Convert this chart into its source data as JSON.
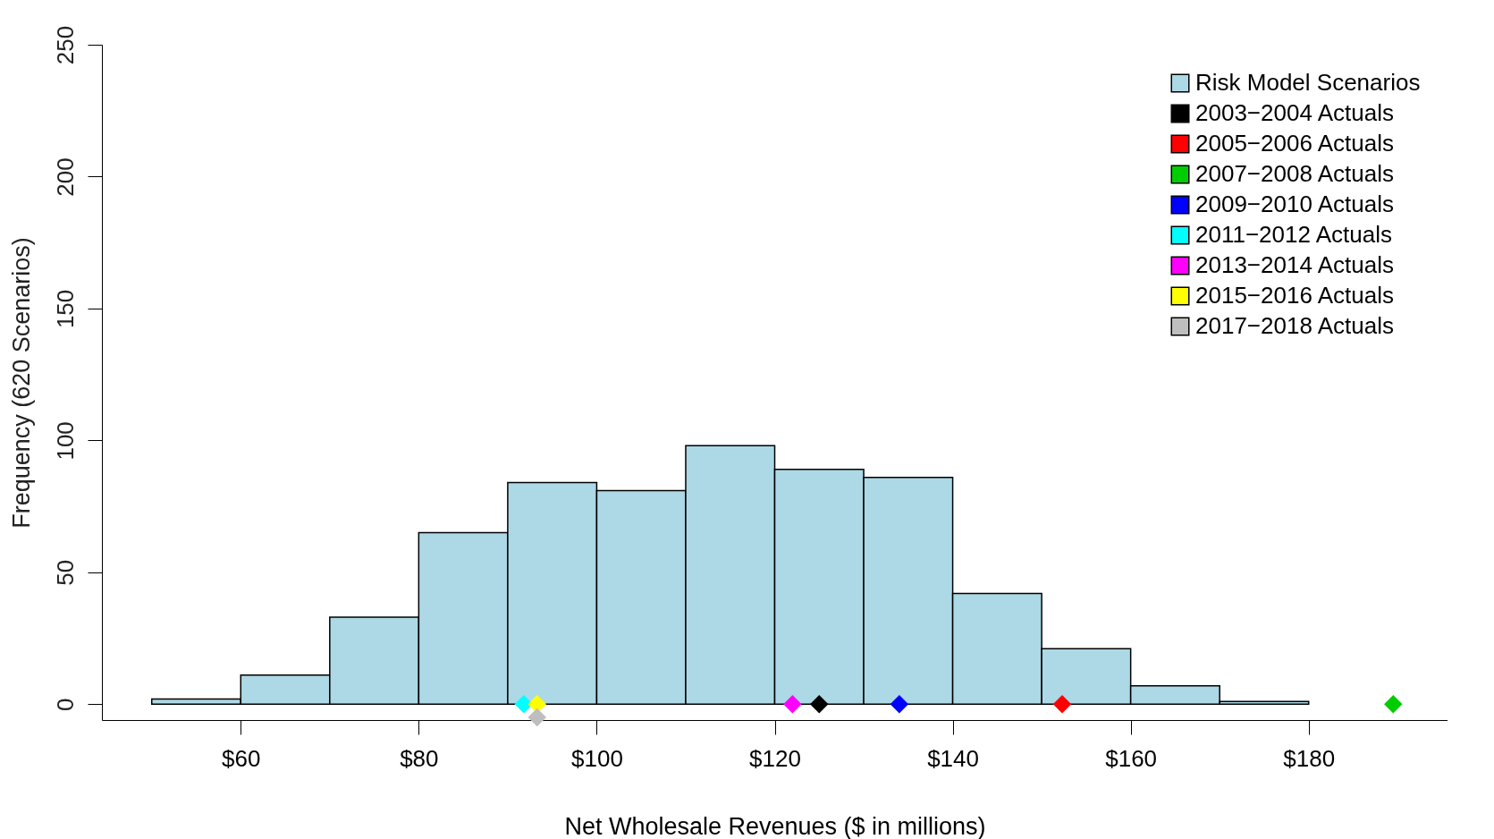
{
  "chart_data": {
    "type": "histogram",
    "xlabel": "Net Wholesale Revenues ($ in millions)",
    "ylabel": "Frequency (620 Scenarios)",
    "bins": [
      50,
      60,
      70,
      80,
      90,
      100,
      110,
      120,
      130,
      140,
      150,
      160,
      170,
      180
    ],
    "series": [
      {
        "name": "Risk Model Scenarios",
        "color": "#add8e6",
        "values": [
          2,
          11,
          33,
          65,
          84,
          81,
          98,
          89,
          86,
          42,
          21,
          7,
          1
        ]
      },
      {
        "type": "scatter",
        "name": "2003−2004 Actuals",
        "color": "#000000",
        "x": [
          125
        ],
        "values": [
          0
        ]
      },
      {
        "type": "scatter",
        "name": "2005−2006 Actuals",
        "color": "#ff0000",
        "x": [
          152.3
        ],
        "values": [
          0
        ]
      },
      {
        "type": "scatter",
        "name": "2007−2008 Actuals",
        "color": "#00cd00",
        "x": [
          189.5
        ],
        "values": [
          0
        ]
      },
      {
        "type": "scatter",
        "name": "2009−2010 Actuals",
        "color": "#0000ff",
        "x": [
          134
        ],
        "values": [
          0
        ]
      },
      {
        "type": "scatter",
        "name": "2011−2012 Actuals",
        "color": "#00ffff",
        "x": [
          91.8
        ],
        "values": [
          0
        ]
      },
      {
        "type": "scatter",
        "name": "2013−2014 Actuals",
        "color": "#ff00ff",
        "x": [
          122
        ],
        "values": [
          0
        ]
      },
      {
        "type": "scatter",
        "name": "2015−2016 Actuals",
        "color": "#ffff00",
        "x": [
          93.3
        ],
        "values": [
          0
        ]
      },
      {
        "type": "scatter",
        "name": "2017−2018 Actuals",
        "color": "#bebebe",
        "x": [
          93.3
        ],
        "values": [
          -5
        ]
      }
    ],
    "marker": "diamond",
    "legend": "top right",
    "grid": false,
    "xlim": [
      44.4,
      195.6
    ],
    "ylim": [
      -6,
      250
    ],
    "xticks": [
      {
        "value": 60,
        "label": "$60"
      },
      {
        "value": 80,
        "label": "$80"
      },
      {
        "value": 100,
        "label": "$100"
      },
      {
        "value": 120,
        "label": "$120"
      },
      {
        "value": 140,
        "label": "$140"
      },
      {
        "value": 160,
        "label": "$160"
      },
      {
        "value": 180,
        "label": "$180"
      }
    ],
    "yticks": [
      0,
      50,
      100,
      150,
      200,
      250
    ]
  }
}
